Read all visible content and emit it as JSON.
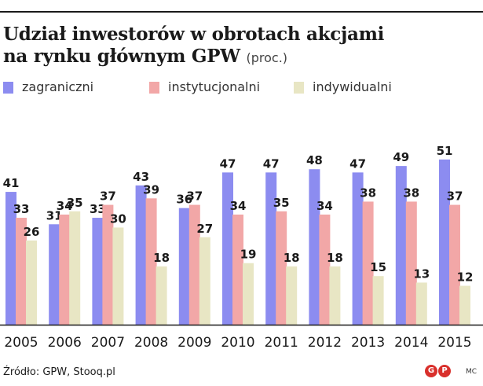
{
  "header": {
    "title_line1": "Udział inwestorów w obrotach akcjami",
    "title_line2": "na rynku głównym GPW",
    "title_unit": "(proc.)"
  },
  "legend": [
    {
      "label": "zagraniczni",
      "color": "#8c8cf0"
    },
    {
      "label": "instytucjonalni",
      "color": "#f2a7a7"
    },
    {
      "label": "indywidualni",
      "color": "#e8e6c4"
    }
  ],
  "chart_data": {
    "type": "bar",
    "title": "Udział inwestorów w obrotach akcjami na rynku głównym GPW",
    "unit": "(proc.)",
    "categories": [
      "2005",
      "2006",
      "2007",
      "2008",
      "2009",
      "2010",
      "2011",
      "2012",
      "2013",
      "2014",
      "2015"
    ],
    "series": [
      {
        "name": "zagraniczni",
        "color": "#8c8cf0",
        "values": [
          41,
          31,
          33,
          43,
          36,
          47,
          47,
          48,
          47,
          49,
          51
        ]
      },
      {
        "name": "instytucjonalni",
        "color": "#f2a7a7",
        "values": [
          33,
          34,
          37,
          39,
          37,
          34,
          35,
          34,
          38,
          38,
          37
        ]
      },
      {
        "name": "indywidualni",
        "color": "#e8e6c4",
        "values": [
          26,
          35,
          30,
          18,
          27,
          19,
          18,
          18,
          15,
          13,
          12
        ]
      }
    ],
    "ylim": [
      0,
      51
    ],
    "grid": false,
    "data_labels": true,
    "legend_position": "top-left"
  },
  "footer": {
    "source": "Źródło: GPW, Stooq.pl",
    "logo_letters": [
      "G",
      "P"
    ],
    "signature": "MC"
  }
}
